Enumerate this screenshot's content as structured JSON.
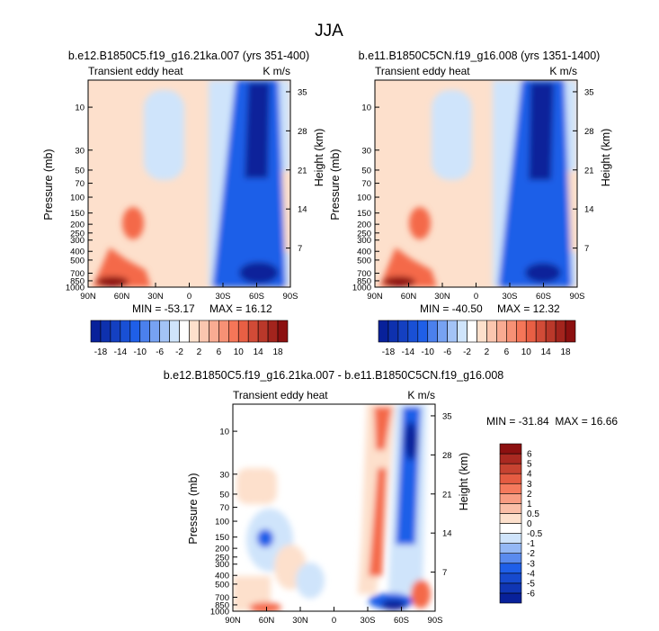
{
  "page_title": "JJA",
  "colors": {
    "blue_dark": "#08219a",
    "blue_mid": "#1f5fe8",
    "blue_light": "#cfe4fb",
    "white": "#ffffff",
    "peach": "#fde0cc",
    "red_mid": "#f4694a",
    "red_dark": "#8c1010"
  },
  "chart_data": [
    {
      "type": "heatmap",
      "id": "panel1",
      "title": "b.e12.B1850C5.f19_g16.21ka.007 (yrs 351-400)",
      "left_label": "Transient eddy heat",
      "right_label": "K m/s",
      "ylabel": "Pressure (mb)",
      "ylabel_right": "Height (km)",
      "x_ticks": [
        "90N",
        "60N",
        "30N",
        "0",
        "30S",
        "60S",
        "90S"
      ],
      "y_ticks": [
        "10",
        "30",
        "50",
        "70",
        "100",
        "150",
        "200",
        "250",
        "300",
        "400",
        "500",
        "700",
        "850",
        "1000"
      ],
      "y_ticks_right": [
        "35",
        "28",
        "21",
        "14",
        "7"
      ],
      "xlim": [
        90,
        -90
      ],
      "ylim_mb": [
        1000,
        5
      ],
      "min_label": "MIN = -53.17",
      "max_label": "MAX = 16.12",
      "colorbar_levels": [
        -18,
        -16,
        -14,
        -12,
        -10,
        -8,
        -6,
        -4,
        -2,
        0,
        2,
        4,
        6,
        8,
        10,
        12,
        14,
        16,
        18
      ],
      "colorbar_labels": [
        "-18",
        "-14",
        "-10",
        "-6",
        "-2",
        "2",
        "6",
        "10",
        "14",
        "18"
      ]
    },
    {
      "type": "heatmap",
      "id": "panel2",
      "title": "b.e11.B1850C5CN.f19_g16.008 (yrs 1351-1400)",
      "left_label": "Transient eddy heat",
      "right_label": "K m/s",
      "ylabel": "Pressure (mb)",
      "ylabel_right": "Height (km)",
      "x_ticks": [
        "90N",
        "60N",
        "30N",
        "0",
        "30S",
        "60S",
        "90S"
      ],
      "y_ticks": [
        "10",
        "30",
        "50",
        "70",
        "100",
        "150",
        "200",
        "250",
        "300",
        "400",
        "500",
        "700",
        "850",
        "1000"
      ],
      "y_ticks_right": [
        "35",
        "28",
        "21",
        "14",
        "7"
      ],
      "xlim": [
        90,
        -90
      ],
      "ylim_mb": [
        1000,
        5
      ],
      "min_label": "MIN = -40.50",
      "max_label": "MAX = 12.32",
      "colorbar_levels": [
        -18,
        -16,
        -14,
        -12,
        -10,
        -8,
        -6,
        -4,
        -2,
        0,
        2,
        4,
        6,
        8,
        10,
        12,
        14,
        16,
        18
      ],
      "colorbar_labels": [
        "-18",
        "-14",
        "-10",
        "-6",
        "-2",
        "2",
        "6",
        "10",
        "14",
        "18"
      ]
    },
    {
      "type": "heatmap",
      "id": "panel3",
      "title": "b.e12.B1850C5.f19_g16.21ka.007 - b.e11.B1850C5CN.f19_g16.008",
      "left_label": "Transient eddy heat",
      "right_label": "K m/s",
      "ylabel": "Pressure (mb)",
      "ylabel_right": "Height (km)",
      "x_ticks": [
        "90N",
        "60N",
        "30N",
        "0",
        "30S",
        "60S",
        "90S"
      ],
      "y_ticks": [
        "10",
        "30",
        "50",
        "70",
        "100",
        "150",
        "200",
        "250",
        "300",
        "400",
        "500",
        "700",
        "850",
        "1000"
      ],
      "y_ticks_right": [
        "35",
        "28",
        "21",
        "14",
        "7"
      ],
      "xlim": [
        90,
        -90
      ],
      "ylim_mb": [
        1000,
        5
      ],
      "min_max_label": "MIN = -31.84  MAX = 16.66",
      "colorbar_levels": [
        -6,
        -5,
        -4,
        -3,
        -2,
        -1,
        -0.5,
        0,
        0.5,
        1,
        2,
        3,
        4,
        5,
        6
      ],
      "colorbar_labels": [
        "6",
        "5",
        "4",
        "3",
        "2",
        "1",
        "0.5",
        "0",
        "-0.5",
        "-1",
        "-2",
        "-3",
        "-4",
        "-5",
        "-6"
      ]
    }
  ]
}
